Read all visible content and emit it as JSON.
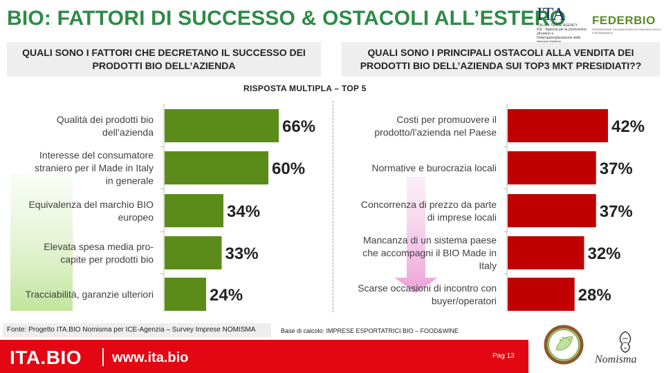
{
  "title": "BIO: FATTORI DI SUCCESSO & OSTACOLI ALL’ESTERO",
  "logos": {
    "ita_word": "ITA",
    "ita_line1": "ITALIAN TRADE AGENCY",
    "ita_line2": "ICE - Agenzia per la promozione all’estero e",
    "ita_line3": "l’internazionalizzazione delle imprese italiane",
    "federbio_word": "FEDERBIO",
    "federbio_sub": "FEDERAZIONE ITALIANA AGRICOLTURA BIOLOGICA E BIODINAMICA",
    "nomisma_word": "Nomisma"
  },
  "question_left": "QUALI SONO I FATTORI CHE DECRETANO IL SUCCESSO DEI PRODOTTI BIO DELL’AZIENDA",
  "question_right": "QUALI SONO I PRINCIPALI OSTACOLI ALLA VENDITA DEI PRODOTTI BIO DELL’AZIENDA SUI TOP3 MKT PRESIDIATI??",
  "subtitle": "RISPOSTA MULTIPLA – TOP 5",
  "colors": {
    "title": "#2e8b46",
    "success_bar": "#5b8c1a",
    "obstacle_bar": "#c00000",
    "brand_red": "#e30613"
  },
  "chart_data": [
    {
      "type": "bar",
      "orientation": "horizontal",
      "title": "Fattori di successo",
      "categories": [
        [
          "Qualità dei prodotti bio",
          "dell’azienda"
        ],
        [
          "Interesse del consumatore",
          "straniero per il Made in Italy",
          "in generale"
        ],
        [
          "Equivalenza del marchio BIO",
          "europeo"
        ],
        [
          "Elevata spesa media pro-",
          "capite per prodotti bio"
        ],
        [
          "Tracciabilità, garanzie ulteriori"
        ]
      ],
      "values": [
        66,
        60,
        34,
        33,
        24
      ],
      "value_labels": [
        "66%",
        "60%",
        "34%",
        "33%",
        "24%"
      ],
      "unit": "%",
      "xlim": [
        0,
        100
      ],
      "bar_color": "#5b8c1a",
      "arrow": "up"
    },
    {
      "type": "bar",
      "orientation": "horizontal",
      "title": "Ostacoli alla vendita",
      "categories": [
        [
          "Costi per promuovere il",
          "prodotto/l’azienda  nel Paese"
        ],
        [
          "Normative e burocrazia locali"
        ],
        [
          "Concorrenza di prezzo da parte",
          "di imprese locali"
        ],
        [
          "Mancanza di un sistema paese",
          "che accompagni il BIO Made in",
          "Italy"
        ],
        [
          "Scarse occasioni di incontro con",
          "buyer/operatori"
        ]
      ],
      "values": [
        42,
        37,
        37,
        32,
        28
      ],
      "value_labels": [
        "42%",
        "37%",
        "37%",
        "32%",
        "28%"
      ],
      "unit": "%",
      "xlim": [
        0,
        60
      ],
      "bar_color": "#c00000",
      "arrow": "down"
    }
  ],
  "footer": {
    "source": "Fonte: Progetto ITA.BIO Nomisma per ICE-Agenzia – Survey Imprese NOMISMA",
    "base": "Base di calcolo: IMPRESE ESPORTATRICI BIO – FOOD&WINE",
    "brand": "ITA.BIO",
    "url": "www.ita.bio",
    "page": "Pag 13"
  }
}
